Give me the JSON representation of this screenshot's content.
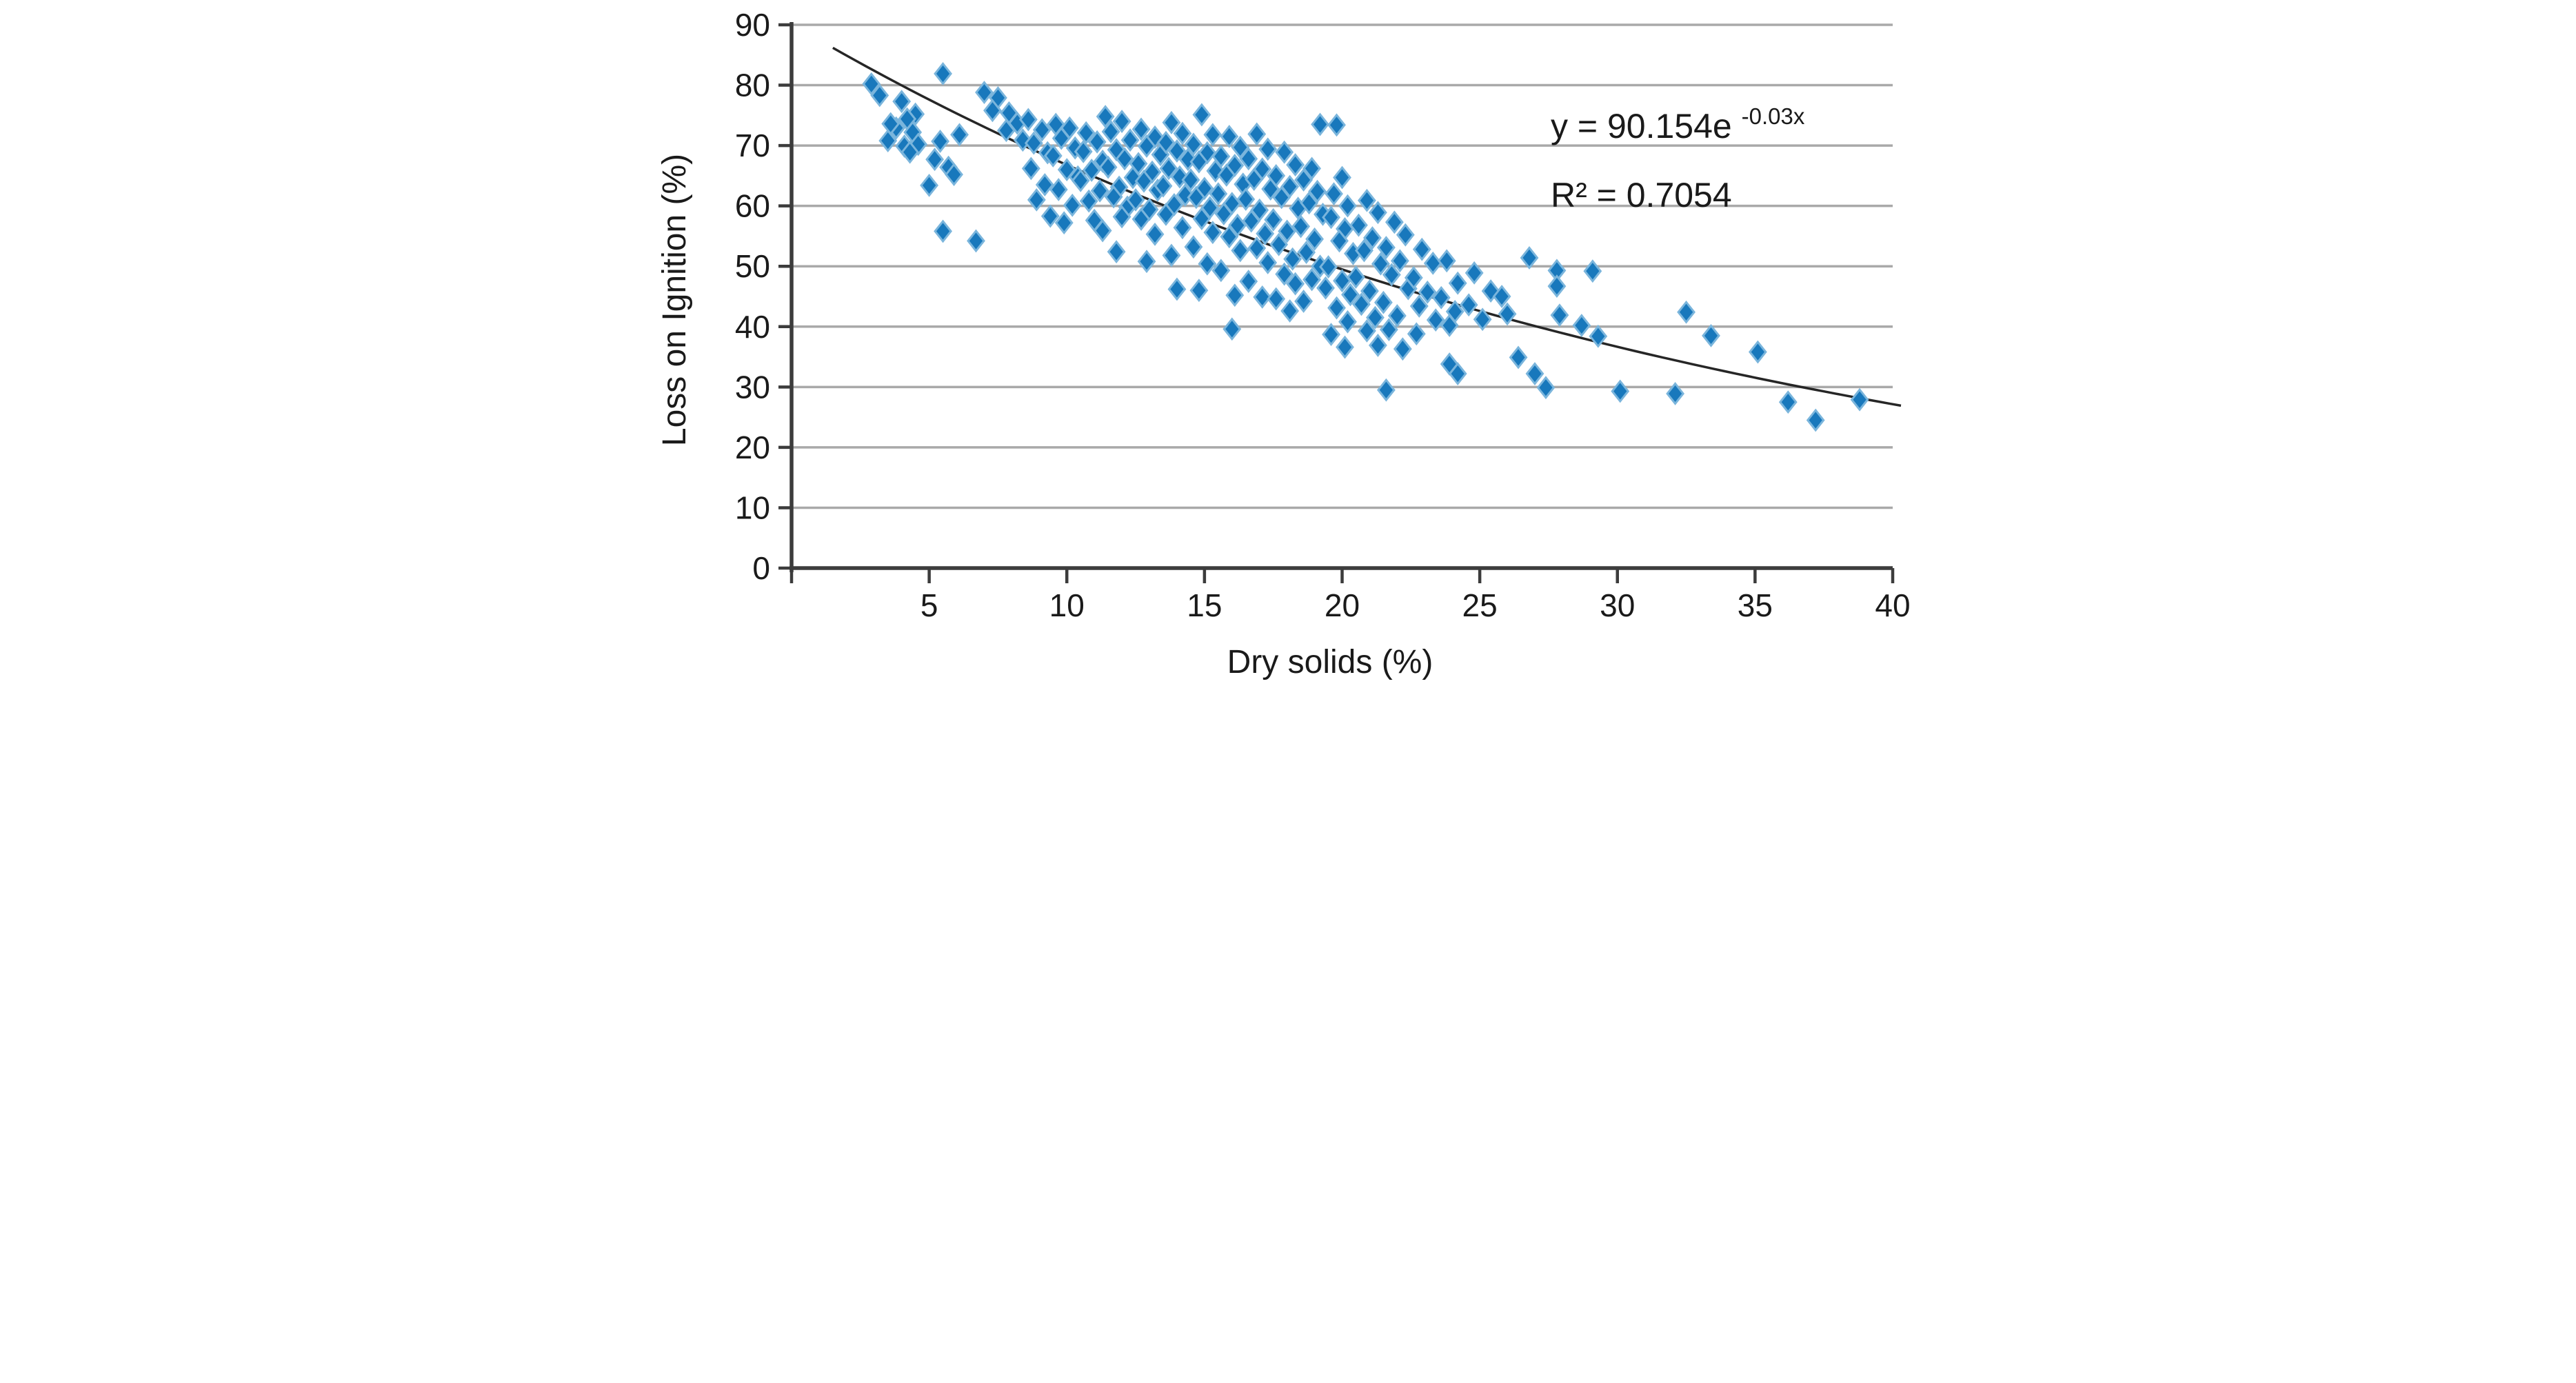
{
  "figure": {
    "background": "#ffffff",
    "xlabel": "Dry solids (%)",
    "ylabel": "Loss on Ignition (%)"
  },
  "chart_data": {
    "type": "scatter",
    "title": "",
    "xlabel": "Dry solids (%)",
    "ylabel": "Loss on Ignition (%)",
    "xlim": [
      0,
      40
    ],
    "ylim": [
      0,
      90
    ],
    "xticks": [
      5,
      10,
      15,
      20,
      25,
      30,
      35,
      40
    ],
    "yticks": [
      0,
      10,
      20,
      30,
      40,
      50,
      60,
      70,
      80,
      90
    ],
    "grid": "horizontal-only",
    "legend_position": "none",
    "colors": {
      "marker_fill": "#1878bc",
      "marker_halo": "#7ab5dc",
      "gridline": "#a9a9a9",
      "axis": "#3c3c3c",
      "trendline": "#262626",
      "text": "#1a1a1a"
    },
    "marker": {
      "shape": "diamond",
      "half_width": 23,
      "half_height": 29
    },
    "trendline": {
      "type": "exponential",
      "a": 90.154,
      "b": -0.03,
      "x_start": 1.5,
      "x_end": 40.3
    },
    "annotation": {
      "equation_prefix": "y = 90.154e",
      "equation_exponent": "-0.03x",
      "r_squared": "R² = 0.7054"
    },
    "points": [
      [
        2.9,
        80.2
      ],
      [
        3.2,
        78.3
      ],
      [
        5.5,
        81.9
      ],
      [
        4.0,
        77.3
      ],
      [
        4.5,
        75.2
      ],
      [
        4.2,
        74.4
      ],
      [
        3.8,
        72.9
      ],
      [
        4.4,
        72.2
      ],
      [
        3.6,
        73.6
      ],
      [
        3.5,
        70.8
      ],
      [
        4.1,
        69.9
      ],
      [
        4.6,
        70.2
      ],
      [
        5.4,
        70.7
      ],
      [
        4.3,
        68.9
      ],
      [
        5.2,
        67.7
      ],
      [
        5.7,
        66.4
      ],
      [
        5.9,
        65.2
      ],
      [
        5.0,
        63.4
      ],
      [
        5.5,
        55.8
      ],
      [
        6.7,
        54.2
      ],
      [
        7.0,
        78.8
      ],
      [
        7.5,
        77.9
      ],
      [
        7.3,
        75.8
      ],
      [
        7.9,
        75.4
      ],
      [
        8.2,
        73.7
      ],
      [
        7.8,
        72.5
      ],
      [
        6.1,
        71.8
      ],
      [
        8.4,
        70.9
      ],
      [
        8.6,
        74.3
      ],
      [
        9.1,
        72.6
      ],
      [
        8.8,
        70.4
      ],
      [
        9.3,
        68.8
      ],
      [
        8.7,
        66.2
      ],
      [
        9.2,
        63.5
      ],
      [
        8.9,
        61.0
      ],
      [
        9.4,
        58.3
      ],
      [
        9.6,
        73.5
      ],
      [
        10.1,
        72.9
      ],
      [
        9.8,
        71.2
      ],
      [
        10.3,
        69.6
      ],
      [
        9.5,
        68.3
      ],
      [
        10.0,
        66.0
      ],
      [
        10.4,
        64.8
      ],
      [
        9.7,
        62.7
      ],
      [
        10.2,
        60.1
      ],
      [
        9.9,
        57.2
      ],
      [
        11.4,
        74.8
      ],
      [
        10.7,
        72.1
      ],
      [
        11.1,
        70.6
      ],
      [
        10.6,
        69.0
      ],
      [
        11.3,
        67.4
      ],
      [
        10.9,
        65.9
      ],
      [
        10.5,
        64.2
      ],
      [
        11.2,
        62.5
      ],
      [
        10.8,
        60.8
      ],
      [
        11.0,
        57.6
      ],
      [
        11.3,
        55.9
      ],
      [
        12.0,
        74.0
      ],
      [
        11.6,
        72.3
      ],
      [
        12.3,
        70.9
      ],
      [
        11.8,
        69.3
      ],
      [
        12.1,
        67.8
      ],
      [
        11.5,
        66.4
      ],
      [
        12.4,
        64.7
      ],
      [
        11.9,
        63.1
      ],
      [
        11.7,
        61.5
      ],
      [
        12.2,
        59.8
      ],
      [
        12.0,
        58.2
      ],
      [
        11.8,
        52.4
      ],
      [
        12.7,
        72.7
      ],
      [
        13.2,
        71.4
      ],
      [
        12.9,
        69.9
      ],
      [
        13.4,
        68.5
      ],
      [
        12.6,
        67.0
      ],
      [
        13.1,
        65.6
      ],
      [
        12.8,
        64.1
      ],
      [
        13.3,
        62.6
      ],
      [
        12.5,
        61.0
      ],
      [
        13.0,
        59.4
      ],
      [
        12.7,
        57.8
      ],
      [
        13.2,
        55.3
      ],
      [
        12.9,
        50.8
      ],
      [
        13.8,
        73.8
      ],
      [
        14.2,
        72.0
      ],
      [
        13.6,
        70.5
      ],
      [
        14.0,
        69.1
      ],
      [
        14.4,
        67.7
      ],
      [
        13.7,
        66.2
      ],
      [
        14.1,
        64.8
      ],
      [
        13.5,
        63.3
      ],
      [
        14.3,
        61.8
      ],
      [
        13.9,
        60.2
      ],
      [
        13.6,
        58.6
      ],
      [
        14.2,
        56.4
      ],
      [
        13.8,
        51.8
      ],
      [
        14.0,
        46.2
      ],
      [
        14.9,
        75.1
      ],
      [
        15.3,
        71.8
      ],
      [
        14.6,
        70.2
      ],
      [
        15.1,
        68.8
      ],
      [
        14.8,
        67.3
      ],
      [
        15.4,
        65.8
      ],
      [
        14.5,
        64.3
      ],
      [
        15.0,
        62.9
      ],
      [
        14.7,
        61.4
      ],
      [
        15.2,
        59.7
      ],
      [
        14.9,
        57.9
      ],
      [
        15.3,
        55.6
      ],
      [
        14.6,
        53.2
      ],
      [
        15.1,
        50.4
      ],
      [
        14.8,
        46.0
      ],
      [
        15.9,
        71.5
      ],
      [
        16.3,
        69.7
      ],
      [
        15.6,
        68.2
      ],
      [
        16.1,
        66.7
      ],
      [
        15.8,
        65.1
      ],
      [
        16.4,
        63.6
      ],
      [
        15.5,
        62.0
      ],
      [
        16.0,
        60.4
      ],
      [
        15.7,
        58.7
      ],
      [
        16.2,
        56.8
      ],
      [
        15.9,
        54.9
      ],
      [
        16.3,
        52.6
      ],
      [
        15.6,
        49.3
      ],
      [
        16.1,
        45.2
      ],
      [
        16.0,
        39.6
      ],
      [
        16.9,
        71.9
      ],
      [
        17.3,
        69.4
      ],
      [
        16.6,
        67.8
      ],
      [
        17.1,
        66.1
      ],
      [
        16.8,
        64.4
      ],
      [
        17.4,
        62.8
      ],
      [
        16.5,
        61.1
      ],
      [
        17.0,
        59.3
      ],
      [
        16.7,
        57.5
      ],
      [
        17.2,
        55.4
      ],
      [
        16.9,
        53.0
      ],
      [
        17.3,
        50.6
      ],
      [
        16.6,
        47.5
      ],
      [
        17.1,
        44.9
      ],
      [
        17.9,
        68.9
      ],
      [
        18.3,
        66.8
      ],
      [
        17.6,
        65.0
      ],
      [
        18.1,
        63.2
      ],
      [
        17.8,
        61.4
      ],
      [
        18.4,
        59.6
      ],
      [
        17.5,
        57.7
      ],
      [
        18.0,
        55.8
      ],
      [
        17.7,
        53.6
      ],
      [
        18.2,
        51.2
      ],
      [
        17.9,
        48.7
      ],
      [
        18.3,
        47.1
      ],
      [
        17.6,
        44.6
      ],
      [
        18.1,
        42.6
      ],
      [
        19.2,
        73.5
      ],
      [
        18.9,
        66.2
      ],
      [
        18.6,
        64.3
      ],
      [
        19.1,
        62.4
      ],
      [
        18.8,
        60.5
      ],
      [
        19.3,
        58.6
      ],
      [
        18.5,
        56.6
      ],
      [
        19.0,
        54.5
      ],
      [
        18.7,
        52.3
      ],
      [
        19.2,
        50.0
      ],
      [
        18.9,
        47.8
      ],
      [
        19.4,
        46.4
      ],
      [
        18.6,
        44.2
      ],
      [
        19.8,
        73.4
      ],
      [
        20.0,
        64.7
      ],
      [
        19.7,
        62.0
      ],
      [
        20.2,
        60.0
      ],
      [
        19.6,
        58.1
      ],
      [
        20.1,
        56.2
      ],
      [
        19.9,
        54.2
      ],
      [
        20.4,
        52.1
      ],
      [
        19.5,
        49.9
      ],
      [
        20.0,
        47.6
      ],
      [
        20.3,
        45.3
      ],
      [
        19.8,
        43.1
      ],
      [
        20.2,
        40.8
      ],
      [
        19.6,
        38.7
      ],
      [
        20.1,
        36.6
      ],
      [
        20.9,
        60.9
      ],
      [
        21.3,
        58.9
      ],
      [
        20.6,
        56.8
      ],
      [
        21.1,
        54.7
      ],
      [
        20.8,
        52.6
      ],
      [
        21.4,
        50.4
      ],
      [
        20.5,
        48.2
      ],
      [
        21.0,
        45.9
      ],
      [
        20.7,
        43.7
      ],
      [
        21.2,
        41.5
      ],
      [
        20.9,
        39.3
      ],
      [
        21.3,
        36.9
      ],
      [
        21.9,
        57.3
      ],
      [
        22.3,
        55.2
      ],
      [
        21.6,
        53.1
      ],
      [
        22.1,
        50.9
      ],
      [
        21.8,
        48.6
      ],
      [
        22.4,
        46.3
      ],
      [
        21.5,
        44.0
      ],
      [
        22.0,
        41.8
      ],
      [
        21.7,
        39.5
      ],
      [
        22.2,
        36.3
      ],
      [
        21.6,
        29.5
      ],
      [
        22.9,
        52.8
      ],
      [
        23.3,
        50.5
      ],
      [
        22.6,
        48.1
      ],
      [
        23.1,
        45.7
      ],
      [
        22.8,
        43.4
      ],
      [
        23.4,
        41.1
      ],
      [
        22.7,
        38.8
      ],
      [
        23.8,
        50.9
      ],
      [
        24.2,
        47.2
      ],
      [
        23.6,
        44.8
      ],
      [
        24.1,
        42.5
      ],
      [
        23.9,
        40.2
      ],
      [
        23.9,
        33.8
      ],
      [
        24.2,
        32.2
      ],
      [
        24.8,
        48.9
      ],
      [
        25.4,
        45.9
      ],
      [
        24.6,
        43.6
      ],
      [
        25.1,
        41.2
      ],
      [
        25.8,
        45.0
      ],
      [
        26.0,
        42.1
      ],
      [
        26.4,
        34.9
      ],
      [
        26.8,
        51.4
      ],
      [
        27.8,
        49.3
      ],
      [
        27.8,
        46.7
      ],
      [
        27.9,
        41.9
      ],
      [
        27.0,
        32.2
      ],
      [
        27.4,
        29.9
      ],
      [
        28.7,
        40.2
      ],
      [
        29.3,
        38.4
      ],
      [
        29.1,
        49.2
      ],
      [
        30.1,
        29.3
      ],
      [
        32.1,
        28.9
      ],
      [
        32.5,
        42.4
      ],
      [
        33.4,
        38.5
      ],
      [
        35.1,
        35.8
      ],
      [
        36.2,
        27.5
      ],
      [
        37.2,
        24.5
      ],
      [
        38.8,
        27.9
      ]
    ]
  }
}
